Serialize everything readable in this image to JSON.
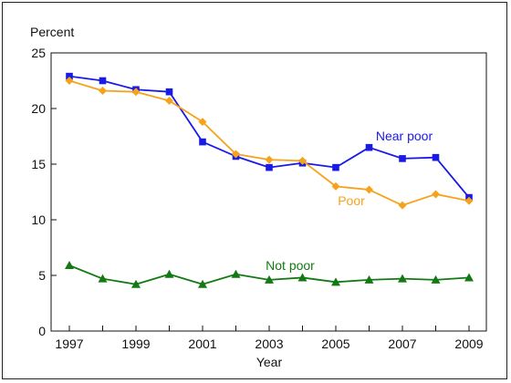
{
  "chart_data": {
    "type": "line",
    "title": "",
    "ylabel": "Percent",
    "xlabel": "Year",
    "ylim": [
      0,
      25
    ],
    "xlim": [
      1997,
      2009
    ],
    "grid": false,
    "legend": "inline",
    "y_ticks": [
      "0",
      "5",
      "10",
      "15",
      "20",
      "25"
    ],
    "x_ticks": [
      "1997",
      "1999",
      "2001",
      "2003",
      "2005",
      "2007",
      "2009"
    ],
    "x": [
      1997,
      1998,
      1999,
      2000,
      2001,
      2002,
      2003,
      2004,
      2005,
      2006,
      2007,
      2008,
      2009
    ],
    "series": [
      {
        "name": "Near poor",
        "color": "#1a1ae6",
        "marker": "square",
        "values": [
          22.9,
          22.5,
          21.7,
          21.5,
          17.0,
          15.7,
          14.7,
          15.1,
          14.7,
          16.5,
          15.5,
          15.6,
          12.0
        ]
      },
      {
        "name": "Poor",
        "color": "#f7a21b",
        "marker": "diamond",
        "values": [
          22.5,
          21.6,
          21.5,
          20.7,
          18.8,
          15.9,
          15.4,
          15.3,
          13.0,
          12.7,
          11.3,
          12.3,
          11.7
        ]
      },
      {
        "name": "Not poor",
        "color": "#137a13",
        "marker": "triangle",
        "values": [
          5.9,
          4.7,
          4.2,
          5.1,
          4.2,
          5.1,
          4.6,
          4.8,
          4.4,
          4.6,
          4.7,
          4.6,
          4.8
        ]
      }
    ]
  }
}
